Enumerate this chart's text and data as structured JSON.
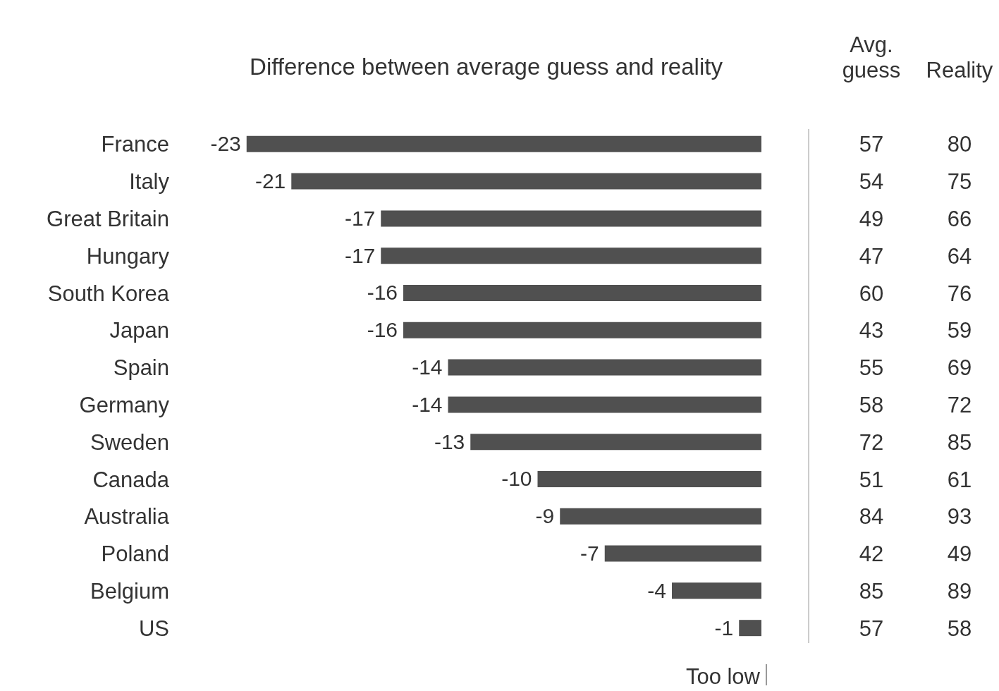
{
  "chart_data": [
    {
      "type": "bar",
      "orientation": "horizontal",
      "title": "Difference between average guess and reality",
      "categories": [
        "France",
        "Italy",
        "Great Britain",
        "Hungary",
        "South Korea",
        "Japan",
        "Spain",
        "Germany",
        "Sweden",
        "Canada",
        "Australia",
        "Poland",
        "Belgium",
        "US"
      ],
      "values": [
        -23,
        -21,
        -17,
        -17,
        -16,
        -16,
        -14,
        -14,
        -13,
        -10,
        -9,
        -7,
        -4,
        -1
      ],
      "color": "#505050",
      "tick_labels": "y",
      "data_labels": true,
      "annotations": [
        "Too low"
      ]
    },
    {
      "type": "heatmap",
      "categories": [
        "Avg. guess",
        "Reality"
      ],
      "y_categories": [
        null,
        null,
        null,
        null,
        null,
        null,
        null,
        null,
        null,
        null,
        null,
        null,
        null,
        null
      ],
      "cells": [
        [
          57,
          80
        ],
        [
          54,
          75
        ],
        [
          49,
          66
        ],
        [
          47,
          64
        ],
        [
          60,
          76
        ],
        [
          43,
          59
        ],
        [
          55,
          69
        ],
        [
          58,
          72
        ],
        [
          72,
          85
        ],
        [
          51,
          61
        ],
        [
          84,
          93
        ],
        [
          42,
          49
        ],
        [
          85,
          89
        ],
        [
          57,
          58
        ]
      ],
      "data_labels": true
    }
  ]
}
